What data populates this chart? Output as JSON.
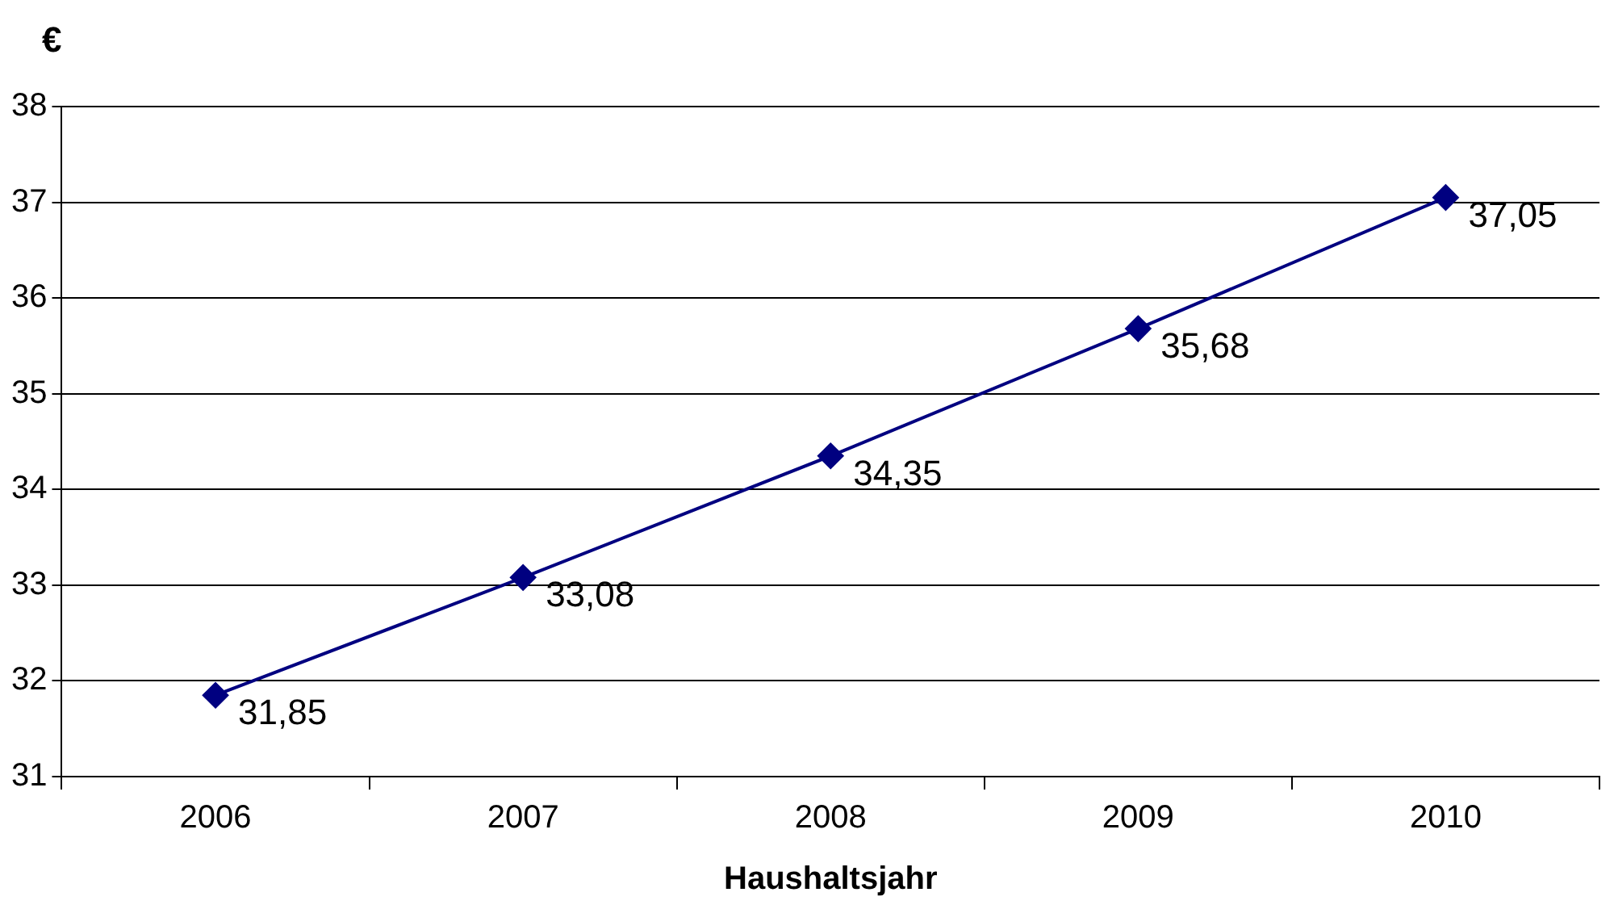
{
  "chart_data": {
    "type": "line",
    "xlabel": "Haushaltsjahr",
    "ylabel": "€",
    "categories": [
      "2006",
      "2007",
      "2008",
      "2009",
      "2010"
    ],
    "series": [
      {
        "color": "#000080",
        "values": [
          31.85,
          33.08,
          34.35,
          35.68,
          37.05
        ],
        "value_labels": [
          "31,85",
          "33,08",
          "34,35",
          "35,68",
          "37,05"
        ]
      }
    ],
    "ylim": [
      31,
      38
    ],
    "yticks": [
      31,
      32,
      33,
      34,
      35,
      36,
      37,
      38
    ],
    "grid": "y",
    "legend": false,
    "marker": "diamond",
    "line_style": "solid"
  }
}
